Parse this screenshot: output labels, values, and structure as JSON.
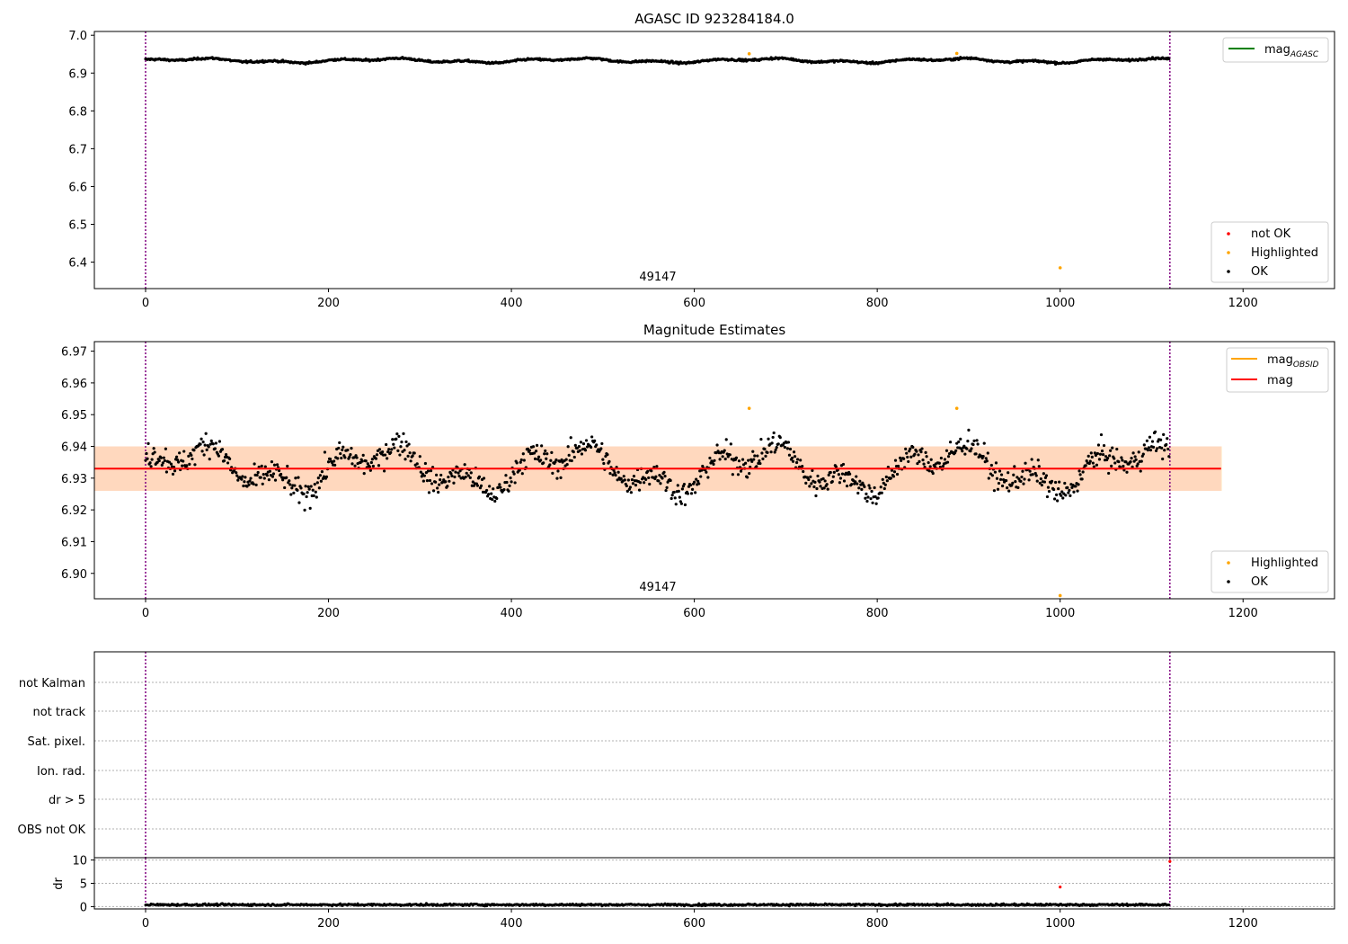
{
  "chart_data": [
    {
      "type": "scatter",
      "title": "AGASC ID 923284184.0",
      "xlim": [
        -56,
        1300
      ],
      "ylim": [
        6.33,
        7.01
      ],
      "xticks": [
        0,
        200,
        400,
        600,
        800,
        1000,
        1200
      ],
      "yticks": [
        6.4,
        6.5,
        6.6,
        6.7,
        6.8,
        6.9,
        7.0
      ],
      "vlines": [
        0,
        1120
      ],
      "obsid_label": {
        "text": "49147",
        "x": 560
      },
      "line_legend": [
        {
          "name": "mag",
          "subscript": "AGASC",
          "color": "#008000"
        }
      ],
      "marker_legend": [
        {
          "name": "not OK",
          "color": "#ff0000"
        },
        {
          "name": "Highlighted",
          "color": "#ffa500"
        },
        {
          "name": "OK",
          "color": "#000000"
        }
      ],
      "series_generated": {
        "n": 1120,
        "base": 6.933,
        "amplitude": 0.007,
        "noise": 0.003
      },
      "highlighted_points": [
        {
          "x": 660,
          "y": 6.951
        },
        {
          "x": 887,
          "y": 6.952
        },
        {
          "x": 1000,
          "y": 6.385
        }
      ]
    },
    {
      "type": "scatter",
      "title": "Magnitude Estimates",
      "xlim": [
        -56,
        1300
      ],
      "ylim": [
        6.892,
        6.973
      ],
      "xticks": [
        0,
        200,
        400,
        600,
        800,
        1000,
        1200
      ],
      "yticks": [
        6.9,
        6.91,
        6.92,
        6.93,
        6.94,
        6.95,
        6.96,
        6.97
      ],
      "vlines": [
        0,
        1120
      ],
      "obsid_label": {
        "text": "49147",
        "x": 560
      },
      "mag": 6.933,
      "band_outer": [
        6.926,
        6.94
      ],
      "band_x": [
        -56,
        1176
      ],
      "line_legend": [
        {
          "name": "mag",
          "subscript": "OBSID",
          "color": "#ffa500"
        },
        {
          "name": "mag",
          "subscript": "",
          "color": "#ff0000"
        }
      ],
      "marker_legend": [
        {
          "name": "Highlighted",
          "color": "#ffa500"
        },
        {
          "name": "OK",
          "color": "#000000"
        }
      ],
      "series_generated": {
        "n": 1120,
        "base": 6.933,
        "amplitude": 0.009,
        "noise": 0.0045
      },
      "highlighted_points": [
        {
          "x": 660,
          "y": 6.952
        },
        {
          "x": 887,
          "y": 6.952
        },
        {
          "x": 1000,
          "y": 6.893
        }
      ]
    },
    {
      "type": "scatter",
      "title": "",
      "xlim": [
        -56,
        1300
      ],
      "categories": [
        "not Kalman",
        "not track",
        "Sat. pixel.",
        "Ion. rad.",
        "dr > 5",
        "OBS not OK"
      ],
      "vlines": [
        0,
        1120
      ]
    },
    {
      "type": "line",
      "title": "",
      "ylabel": "dr",
      "xlim": [
        -56,
        1300
      ],
      "ylim": [
        -0.5,
        10.5
      ],
      "xticks": [
        0,
        200,
        400,
        600,
        800,
        1000,
        1200
      ],
      "yticks": [
        0,
        5,
        10
      ],
      "vlines": [
        0,
        1120
      ],
      "series_generated": {
        "n": 1120,
        "base": 0.4,
        "noise": 0.25
      },
      "outlier_points": [
        {
          "x": 1000,
          "y": 4.2,
          "color": "#ff0000"
        },
        {
          "x": 1120,
          "y": 9.7,
          "color": "#ff0000"
        }
      ]
    }
  ]
}
